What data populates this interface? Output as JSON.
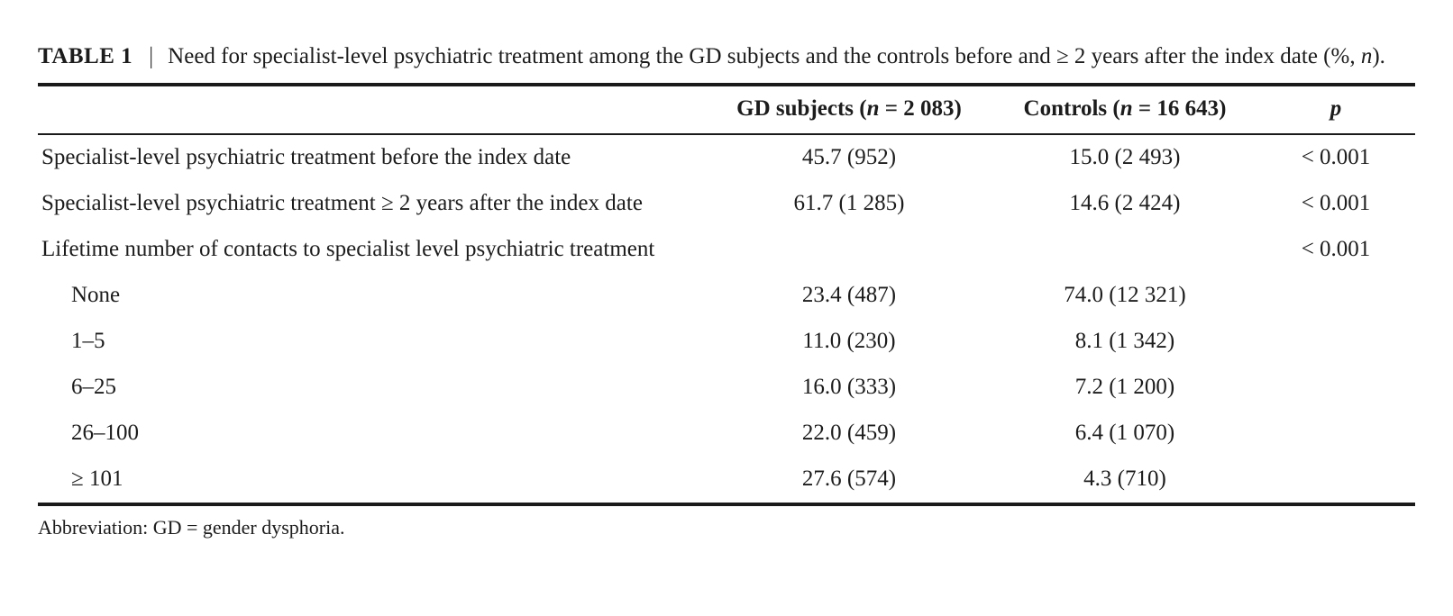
{
  "table_caption": {
    "label": "TABLE 1",
    "separator": "|",
    "text_before_n": "Need for specialist-level psychiatric treatment among the GD subjects and the controls before and ≥ 2 years after the index date (%, ",
    "n_italic": "n",
    "text_after_n": ")."
  },
  "header": {
    "gd_prefix": "GD subjects (",
    "gd_n": "n",
    "gd_suffix": " = 2 083)",
    "controls_prefix": "Controls (",
    "controls_n": "n",
    "controls_suffix": " = 16 643)",
    "p": "p"
  },
  "rows": [
    {
      "label": "Specialist-level psychiatric treatment before the index date",
      "gd": "45.7 (952)",
      "controls": "15.0 (2 493)",
      "p": "< 0.001"
    },
    {
      "label": "Specialist-level psychiatric treatment ≥ 2 years after the index date",
      "gd": "61.7 (1 285)",
      "controls": "14.6 (2 424)",
      "p": "< 0.001"
    },
    {
      "label": "Lifetime number of contacts to specialist level psychiatric treatment",
      "gd": "",
      "controls": "",
      "p": "< 0.001"
    },
    {
      "label": "None",
      "gd": "23.4 (487)",
      "controls": "74.0 (12 321)",
      "p": ""
    },
    {
      "label": "1–5",
      "gd": "11.0 (230)",
      "controls": "8.1 (1 342)",
      "p": ""
    },
    {
      "label": "6–25",
      "gd": "16.0 (333)",
      "controls": "7.2 (1 200)",
      "p": ""
    },
    {
      "label": "26–100",
      "gd": "22.0 (459)",
      "controls": "6.4 (1 070)",
      "p": ""
    },
    {
      "label": "≥ 101",
      "gd": "27.6 (574)",
      "controls": "4.3 (710)",
      "p": ""
    }
  ],
  "footnote": "Abbreviation: GD = gender dysphoria.",
  "colors": {
    "text": "#1c1c1c",
    "rule": "#1a1a1a",
    "background": "#ffffff"
  }
}
